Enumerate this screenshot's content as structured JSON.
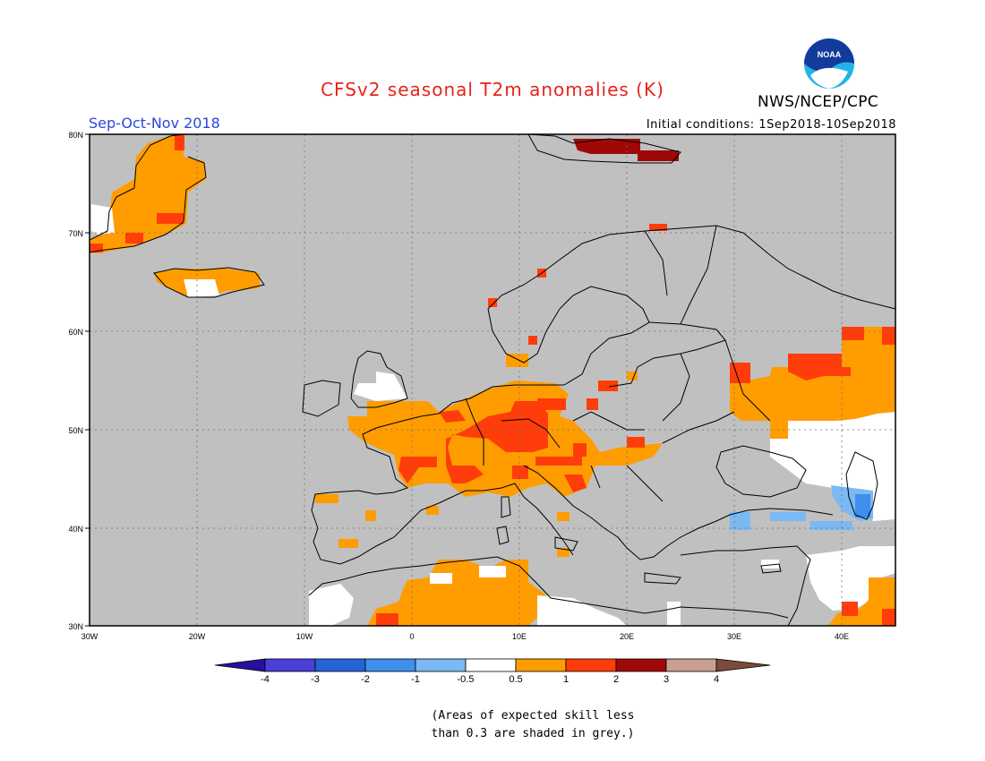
{
  "header": {
    "title": "CFSv2 seasonal T2m anomalies (K)",
    "season": "Sep-Oct-Nov 2018",
    "initial_conditions": "Initial conditions: 1Sep2018-10Sep2018",
    "agency": "NWS/NCEP/CPC",
    "logo_text": "NOAA"
  },
  "map": {
    "lon_range": [
      -30,
      45
    ],
    "lat_range": [
      30,
      80
    ],
    "lat_ticks": [
      "30N",
      "40N",
      "50N",
      "60N",
      "70N",
      "80N"
    ],
    "lon_ticks": [
      "30W",
      "20W",
      "10W",
      "0",
      "10E",
      "20E",
      "30E",
      "40E"
    ],
    "background_grey": "#c0c0c0"
  },
  "legend": {
    "labels": [
      "-4",
      "-3",
      "-2",
      "-1",
      "-0.5",
      "0.5",
      "1",
      "2",
      "3",
      "4"
    ],
    "colors": [
      "#2a0e9e",
      "#4a3fd6",
      "#2563d6",
      "#3f8fef",
      "#7ab9f4",
      "#ffffff",
      "#ff9d00",
      "#ff3d0a",
      "#a00808",
      "#c9a090",
      "#7a4a3a"
    ]
  },
  "footnote": {
    "line1": "(Areas of expected skill less",
    "line2": "than 0.3 are shaded in grey.)"
  }
}
